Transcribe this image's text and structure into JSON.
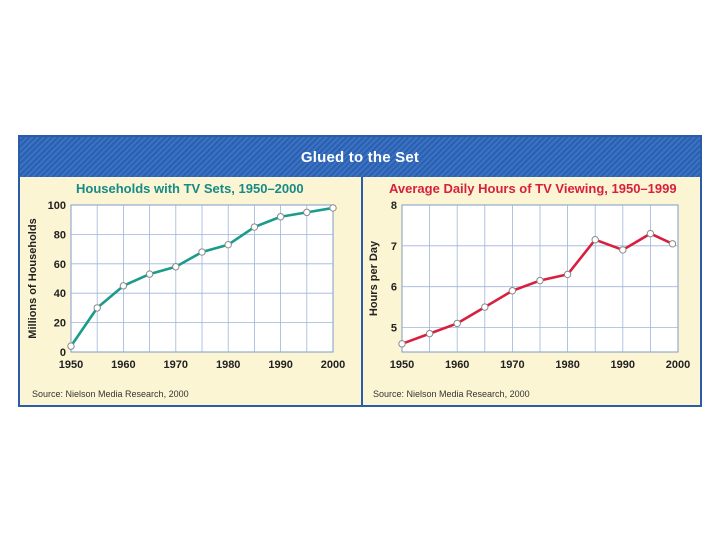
{
  "banner": {
    "title": "Glued to the Set"
  },
  "chart_data": [
    {
      "type": "line",
      "title": "Households with TV Sets, 1950–2000",
      "xlabel": "",
      "ylabel": "Millions of Households",
      "categories": [
        "1950",
        "1955",
        "1960",
        "1965",
        "1970",
        "1975",
        "1980",
        "1985",
        "1990",
        "1995",
        "2000"
      ],
      "x": [
        1950,
        1955,
        1960,
        1965,
        1970,
        1975,
        1980,
        1985,
        1990,
        1995,
        2000
      ],
      "values": [
        4,
        30,
        45,
        53,
        58,
        68,
        73,
        85,
        92,
        95,
        98
      ],
      "ylim": [
        0,
        100
      ],
      "yticks": [
        "0",
        "20",
        "40",
        "60",
        "80",
        "100"
      ],
      "xticks": [
        "1950",
        "1960",
        "1970",
        "1980",
        "1990",
        "2000"
      ],
      "line_color": "#1a9b8c",
      "title_color": "#178a86",
      "source": "Source: Nielson Media Research, 2000"
    },
    {
      "type": "line",
      "title": "Average Daily Hours of TV Viewing, 1950–1999",
      "xlabel": "",
      "ylabel": "Hours per Day",
      "categories": [
        "1950",
        "1955",
        "1960",
        "1965",
        "1970",
        "1975",
        "1980",
        "1985",
        "1990",
        "1995",
        "1999"
      ],
      "x": [
        1950,
        1955,
        1960,
        1965,
        1970,
        1975,
        1980,
        1985,
        1990,
        1995,
        1999
      ],
      "values": [
        4.6,
        4.85,
        5.1,
        5.5,
        5.9,
        6.15,
        6.3,
        7.15,
        6.9,
        7.3,
        7.05
      ],
      "ylim": [
        4.4,
        8
      ],
      "yticks": [
        "5",
        "6",
        "7",
        "8"
      ],
      "xticks": [
        "1950",
        "1960",
        "1970",
        "1980",
        "1990",
        "2000"
      ],
      "line_color": "#d8203e",
      "title_color": "#d8203e",
      "source": "Source: Nielson Media Research, 2000"
    }
  ]
}
